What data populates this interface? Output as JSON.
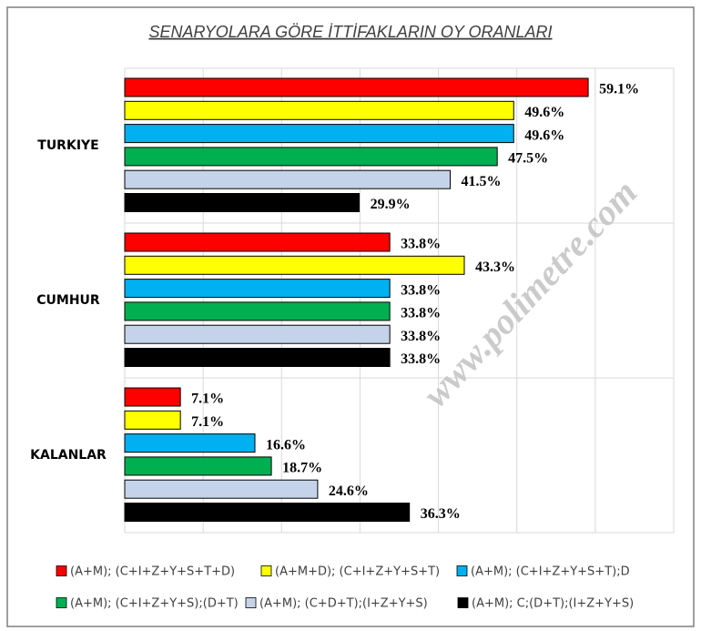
{
  "chart_data": {
    "type": "barh",
    "title": "SENARYOLARA  GÖRE İTTİFAKLARIN OY ORANLARI",
    "watermark": "www.polimetre.com",
    "categories": [
      "TURKIYE",
      "CUMHUR",
      "KALANLAR"
    ],
    "series": [
      {
        "name": "(A+M); (C+I+Z+Y+S+T+D)",
        "color": "#ff0000",
        "values": [
          59.1,
          33.8,
          7.1
        ],
        "value_labels": [
          "59.1%",
          "33.8%",
          "7.1%"
        ]
      },
      {
        "name": "(A+M+D); (C+I+Z+Y+S+T)",
        "color": "#ffff00",
        "values": [
          49.6,
          43.3,
          7.1
        ],
        "value_labels": [
          "49.6%",
          "43.3%",
          "7.1%"
        ]
      },
      {
        "name": "(A+M); (C+I+Z+Y+S+T);D",
        "color": "#00b0f0",
        "values": [
          49.6,
          33.8,
          16.6
        ],
        "value_labels": [
          "49.6%",
          "33.8%",
          "16.6%"
        ]
      },
      {
        "name": "(A+M); (C+I+Z+Y+S);(D+T)",
        "color": "#00b050",
        "values": [
          47.5,
          33.8,
          18.7
        ],
        "value_labels": [
          "47.5%",
          "33.8%",
          "18.7%"
        ]
      },
      {
        "name": "(A+M); (C+D+T);(I+Z+Y+S)",
        "color": "#c5d3ea",
        "values": [
          41.5,
          33.8,
          24.6
        ],
        "value_labels": [
          "41.5%",
          "33.8%",
          "24.6%"
        ]
      },
      {
        "name": "(A+M); C;(D+T);(I+Z+Y+S)",
        "color": "#000000",
        "values": [
          29.9,
          33.8,
          36.3
        ],
        "value_labels": [
          "29.9%",
          "33.8%",
          "36.3%"
        ]
      }
    ],
    "xlim": [
      0,
      70
    ],
    "xticks": [
      0,
      10,
      20,
      30,
      40,
      50,
      60,
      70
    ],
    "grid": true
  }
}
